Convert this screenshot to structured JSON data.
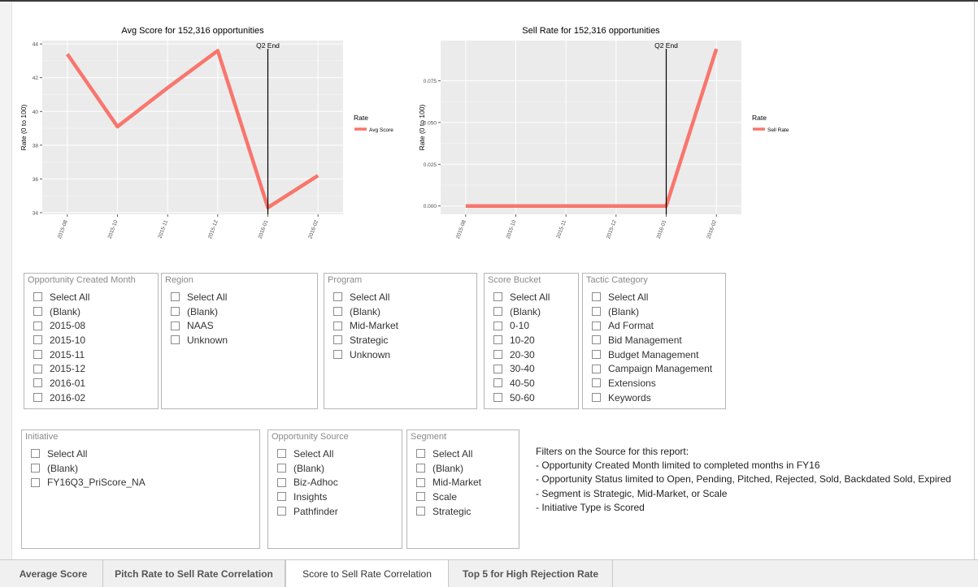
{
  "colors": {
    "line": "#F8766D",
    "panel": "#EBEBEB",
    "grid": "#ffffff"
  },
  "chart_data": [
    {
      "type": "line",
      "title": "Avg Score for 152,316 opportunities",
      "xlabel": "Opportunity Created Month",
      "ylabel": "Rate (0 to 100)",
      "categories": [
        "2015-08",
        "2015-10",
        "2015-11",
        "2015-12",
        "2016-01",
        "2016-02"
      ],
      "series": [
        {
          "name": "Avg Score",
          "values": [
            43.4,
            39.1,
            41.4,
            43.6,
            34.3,
            36.2
          ]
        }
      ],
      "ylim": [
        33.9,
        44.2
      ],
      "yticks": [
        34,
        36,
        38,
        40,
        42,
        44
      ],
      "ytick_labels": [
        "34",
        "36",
        "38",
        "40",
        "42",
        "44"
      ],
      "vline": {
        "at": "2016-01",
        "label": "Q2 End"
      },
      "legend": {
        "title": "Rate",
        "position": "right"
      }
    },
    {
      "type": "line",
      "title": "Sell Rate for 152,316 opportunities",
      "xlabel": "Opportunity Created Month",
      "ylabel": "Rate (0 to 100)",
      "categories": [
        "2015-08",
        "2015-10",
        "2015-11",
        "2015-12",
        "2016-01",
        "2016-02"
      ],
      "series": [
        {
          "name": "Sell Rate",
          "values": [
            0,
            0,
            0,
            0,
            0,
            0.094
          ]
        }
      ],
      "ylim": [
        -0.005,
        0.099
      ],
      "yticks": [
        0,
        0.025,
        0.05,
        0.075
      ],
      "ytick_labels": [
        "0.000",
        "0.025",
        "0.050",
        "0.075"
      ],
      "vline": {
        "at": "2016-01",
        "label": "Q2 End"
      },
      "legend": {
        "title": "Rate",
        "position": "right"
      }
    }
  ],
  "slicers": {
    "month": {
      "title": "Opportunity Created Month",
      "items": [
        "Select All",
        "(Blank)",
        "2015-08",
        "2015-10",
        "2015-11",
        "2015-12",
        "2016-01",
        "2016-02"
      ]
    },
    "region": {
      "title": "Region",
      "items": [
        "Select All",
        "(Blank)",
        "NAAS",
        "Unknown"
      ]
    },
    "program": {
      "title": "Program",
      "items": [
        "Select All",
        "(Blank)",
        "Mid-Market",
        "Strategic",
        "Unknown"
      ]
    },
    "score": {
      "title": "Score Bucket",
      "items": [
        "Select All",
        "(Blank)",
        "0-10",
        "10-20",
        "20-30",
        "30-40",
        "40-50",
        "50-60"
      ]
    },
    "tactic": {
      "title": "Tactic Category",
      "items": [
        "Select All",
        "(Blank)",
        "Ad Format",
        "Bid Management",
        "Budget Management",
        "Campaign Management",
        "Extensions",
        "Keywords"
      ]
    },
    "initiative": {
      "title": "Initiative",
      "items": [
        "Select All",
        "(Blank)",
        "FY16Q3_PriScore_NA"
      ]
    },
    "source": {
      "title": "Opportunity Source",
      "items": [
        "Select All",
        "(Blank)",
        "Biz-Adhoc",
        "Insights",
        "Pathfinder"
      ]
    },
    "segment": {
      "title": "Segment",
      "items": [
        "Select All",
        "(Blank)",
        "Mid-Market",
        "Scale",
        "Strategic"
      ]
    }
  },
  "notes": {
    "heading": "Filters on the Source for this report:",
    "lines": [
      "- Opportunity Created Month limited to completed months in FY16",
      "- Opportunity Status limited to Open, Pending, Pitched, Rejected, Sold, Backdated Sold, Expired",
      "- Segment is Strategic, Mid-Market, or Scale",
      "- Initiative Type is Scored"
    ]
  },
  "tabs": [
    {
      "label": "Average Score",
      "active": false
    },
    {
      "label": "Pitch Rate to Sell Rate Correlation",
      "active": false
    },
    {
      "label": "Score to Sell Rate Correlation",
      "active": true
    },
    {
      "label": "Top 5 for High Rejection Rate",
      "active": false
    }
  ]
}
